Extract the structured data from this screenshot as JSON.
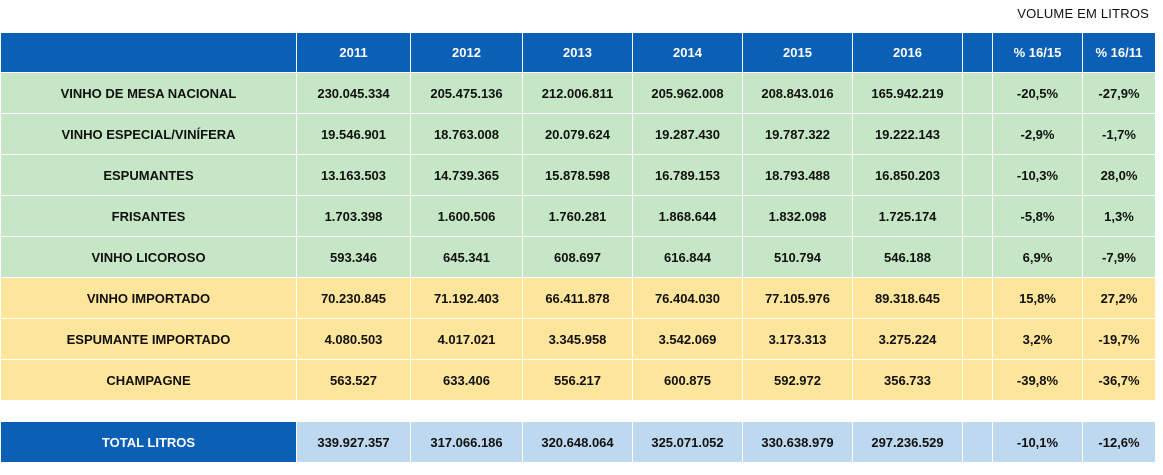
{
  "caption": "VOLUME EM LITROS",
  "header": {
    "label": "",
    "years": [
      "2011",
      "2012",
      "2013",
      "2014",
      "2015",
      "2016"
    ],
    "pct1": "% 16/15",
    "pct2": "% 16/11"
  },
  "rows": [
    {
      "label": "VINHO DE MESA NACIONAL",
      "group": "nacional",
      "values": [
        "230.045.334",
        "205.475.136",
        "212.006.811",
        "205.962.008",
        "208.843.016",
        "165.942.219"
      ],
      "pct1": "-20,5%",
      "pct2": "-27,9%"
    },
    {
      "label": "VINHO ESPECIAL/VINÍFERA",
      "group": "nacional",
      "values": [
        "19.546.901",
        "18.763.008",
        "20.079.624",
        "19.287.430",
        "19.787.322",
        "19.222.143"
      ],
      "pct1": "-2,9%",
      "pct2": "-1,7%"
    },
    {
      "label": "ESPUMANTES",
      "group": "nacional",
      "values": [
        "13.163.503",
        "14.739.365",
        "15.878.598",
        "16.789.153",
        "18.793.488",
        "16.850.203"
      ],
      "pct1": "-10,3%",
      "pct2": "28,0%"
    },
    {
      "label": "FRISANTES",
      "group": "nacional",
      "values": [
        "1.703.398",
        "1.600.506",
        "1.760.281",
        "1.868.644",
        "1.832.098",
        "1.725.174"
      ],
      "pct1": "-5,8%",
      "pct2": "1,3%"
    },
    {
      "label": "VINHO LICOROSO",
      "group": "nacional",
      "values": [
        "593.346",
        "645.341",
        "608.697",
        "616.844",
        "510.794",
        "546.188"
      ],
      "pct1": "6,9%",
      "pct2": "-7,9%"
    },
    {
      "label": "VINHO IMPORTADO",
      "group": "importado",
      "values": [
        "70.230.845",
        "71.192.403",
        "66.411.878",
        "76.404.030",
        "77.105.976",
        "89.318.645"
      ],
      "pct1": "15,8%",
      "pct2": "27,2%"
    },
    {
      "label": "ESPUMANTE IMPORTADO",
      "group": "importado",
      "values": [
        "4.080.503",
        "4.017.021",
        "3.345.958",
        "3.542.069",
        "3.173.313",
        "3.275.224"
      ],
      "pct1": "3,2%",
      "pct2": "-19,7%"
    },
    {
      "label": "CHAMPAGNE",
      "group": "importado",
      "values": [
        "563.527",
        "633.406",
        "556.217",
        "600.875",
        "592.972",
        "356.733"
      ],
      "pct1": "-39,8%",
      "pct2": "-36,7%"
    }
  ],
  "total": {
    "label": "TOTAL LITROS",
    "values": [
      "339.927.357",
      "317.066.186",
      "320.648.064",
      "325.071.052",
      "330.638.979",
      "297.236.529"
    ],
    "pct1": "-10,1%",
    "pct2": "-12,6%"
  },
  "colors": {
    "header_bg": "#0b5fb5",
    "nacional_bg": "#c6e7c6",
    "importado_bg": "#fde59b",
    "total_bg": "#bed8ef",
    "negative": "#e00000",
    "positive": "#1565c0"
  }
}
